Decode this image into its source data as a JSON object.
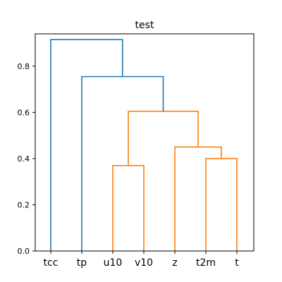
{
  "chart_data": {
    "type": "dendrogram",
    "title": "test",
    "xlabel": "",
    "ylabel": "",
    "leaves": [
      "tcc",
      "tp",
      "u10",
      "v10",
      "z",
      "t2m",
      "t"
    ],
    "ylim": [
      0,
      0.94
    ],
    "yticks": [
      0.0,
      0.2,
      0.4,
      0.6,
      0.8
    ],
    "ytick_labels": [
      "0.0",
      "0.2",
      "0.4",
      "0.6",
      "0.8"
    ],
    "grid": false,
    "merges": [
      {
        "left": "t2m",
        "right": "t",
        "height": 0.4,
        "color": "#ff7f0e"
      },
      {
        "left": "z",
        "right": "t2m+t",
        "height": 0.45,
        "color": "#ff7f0e"
      },
      {
        "left": "u10",
        "right": "v10",
        "height": 0.37,
        "color": "#ff7f0e"
      },
      {
        "left": "u10+v10",
        "right": "z+t2m+t",
        "height": 0.605,
        "color": "#ff7f0e"
      },
      {
        "left": "tp",
        "right": "u10+v10+z+t2m+t",
        "height": 0.755,
        "color": "#1f77b4"
      },
      {
        "left": "tcc",
        "right": "tp+u10+v10+z+t2m+t",
        "height": 0.915,
        "color": "#1f77b4"
      }
    ]
  }
}
